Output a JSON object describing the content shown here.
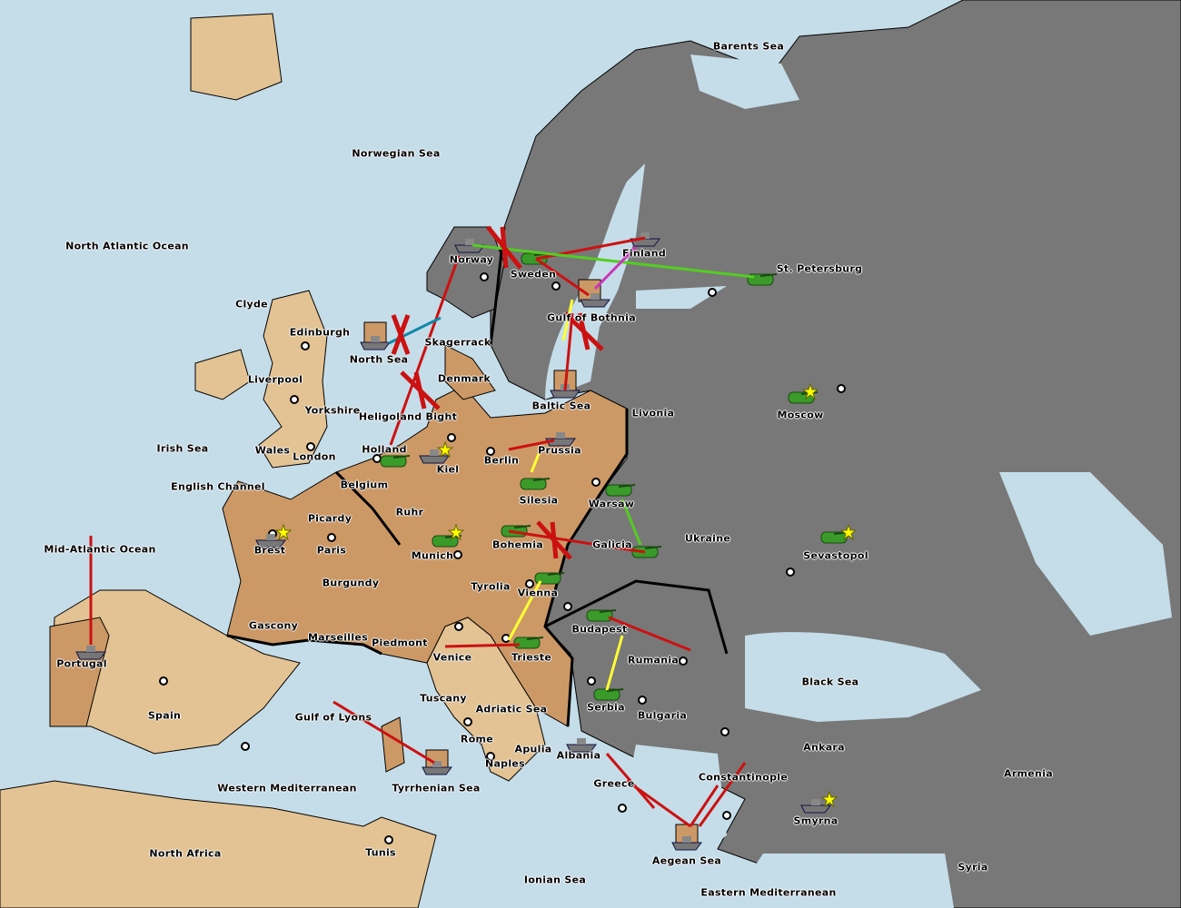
{
  "colors": {
    "sea": "#c5dde9",
    "neutral_land": "#e3c393",
    "player_land": "#cc9966",
    "enemy_land": "#787878",
    "move": "#cc1111",
    "support": "#ffff33",
    "convoy": "#1188aa",
    "green_order": "#55cc22",
    "magenta_order": "#cc33bb"
  },
  "labels": [
    "Barents Sea",
    "Norwegian Sea",
    "North Atlantic Ocean",
    "Clyde",
    "Edinburgh",
    "Liverpool",
    "Yorkshire",
    "Irish Sea",
    "Wales",
    "London",
    "English Channel",
    "Mid-Atlantic Ocean",
    "Brest",
    "Picardy",
    "Paris",
    "Belgium",
    "Holland",
    "Heligoland Bight",
    "North Sea",
    "Skagerrack",
    "Denmark",
    "Norway",
    "Sweden",
    "Finland",
    "St. Petersburg",
    "Gulf of Bothnia",
    "Baltic Sea",
    "Livonia",
    "Moscow",
    "Kiel",
    "Berlin",
    "Prussia",
    "Ruhr",
    "Silesia",
    "Warsaw",
    "Munich",
    "Bohemia",
    "Galicia",
    "Ukraine",
    "Sevastopol",
    "Burgundy",
    "Gascony",
    "Marseilles",
    "Piedmont",
    "Tyrolia",
    "Vienna",
    "Budapest",
    "Venice",
    "Trieste",
    "Rumania",
    "Serbia",
    "Bulgaria",
    "Black Sea",
    "Portugal",
    "Spain",
    "Gulf of Lyons",
    "Tuscany",
    "Adriatic Sea",
    "Rome",
    "Apulia",
    "Naples",
    "Tyrrhenian Sea",
    "Albania",
    "Greece",
    "Constantinople",
    "Ankara",
    "Armenia",
    "Smyrna",
    "Aegean Sea",
    "Western Mediterranean",
    "North Africa",
    "Tunis",
    "Ionian Sea",
    "Eastern Mediterranean",
    "Syria"
  ]
}
